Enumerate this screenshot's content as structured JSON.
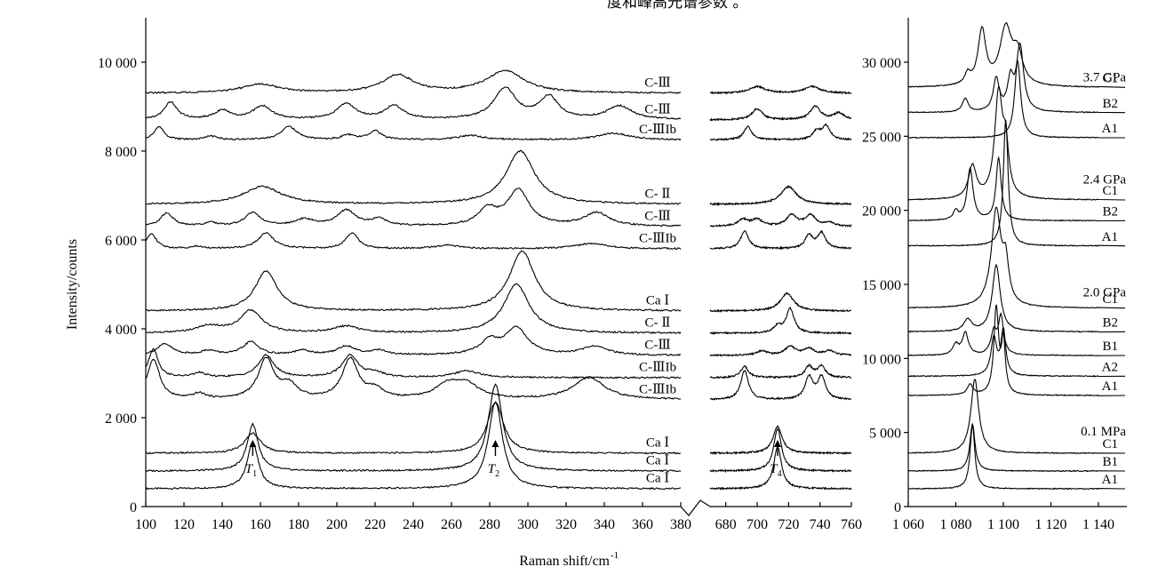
{
  "header_fragment": "度和峰高光谱参数 。",
  "chart_data": [
    {
      "type": "line",
      "panel": "main-spectra",
      "xlabel": "Raman shift/cm-1",
      "ylabel": "Intensity/counts",
      "ylim": [
        0,
        11000
      ],
      "y_ticks": [
        0,
        2000,
        4000,
        6000,
        8000,
        10000
      ],
      "y_tick_labels": [
        "0",
        "2 000",
        "4 000",
        "6 000",
        "8 000",
        "10 000"
      ],
      "x_segments": [
        {
          "xlim": [
            100,
            380
          ],
          "ticks": [
            100,
            120,
            140,
            160,
            180,
            200,
            220,
            240,
            260,
            280,
            300,
            320,
            340,
            360,
            380
          ]
        },
        {
          "xlim": [
            670,
            760
          ],
          "ticks": [
            680,
            700,
            720,
            740,
            760
          ]
        }
      ],
      "grid": false,
      "annotations": [
        {
          "label_main": "T",
          "label_sub": "1",
          "x": 156,
          "y": 980
        },
        {
          "label_main": "T",
          "label_sub": "2",
          "x": 283,
          "y": 980
        },
        {
          "label_main": "T",
          "label_sub": "4",
          "x": 713,
          "y": 980
        }
      ],
      "series": [
        {
          "name": "Ca Ⅰ",
          "baseline": 400,
          "peaks": [
            [
              156,
              1050,
              3.5
            ],
            [
              283,
              1950,
              4.5
            ],
            [
              713,
              950,
              3
            ]
          ]
        },
        {
          "name": "Ca Ⅰ",
          "baseline": 800,
          "peaks": [
            [
              156,
              1050,
              3.5
            ],
            [
              283,
              1950,
              4.5
            ],
            [
              713,
              950,
              3
            ]
          ]
        },
        {
          "name": "Ca Ⅰ",
          "baseline": 1200,
          "peaks": [
            [
              156,
              450,
              5
            ],
            [
              283,
              1150,
              5
            ],
            [
              713,
              600,
              3.5
            ]
          ]
        },
        {
          "name": "C-ⅢIb",
          "baseline": 2400,
          "peaks": [
            [
              104,
              900,
              4
            ],
            [
              128,
              120,
              4
            ],
            [
              163,
              900,
              5
            ],
            [
              175,
              300,
              5
            ],
            [
              207,
              900,
              5
            ],
            [
              220,
              200,
              5
            ],
            [
              258,
              300,
              8
            ],
            [
              268,
              300,
              8
            ],
            [
              332,
              500,
              10
            ],
            [
              692,
              650,
              3
            ],
            [
              733,
              500,
              3
            ],
            [
              741,
              500,
              3
            ]
          ]
        },
        {
          "name": "C-ⅢIb",
          "baseline": 2900,
          "peaks": [
            [
              104,
              650,
              3
            ],
            [
              128,
              100,
              4
            ],
            [
              163,
              500,
              5
            ],
            [
              207,
              500,
              5
            ],
            [
              220,
              100,
              5
            ],
            [
              268,
              150,
              8
            ],
            [
              692,
              250,
              3
            ],
            [
              733,
              250,
              3
            ],
            [
              741,
              250,
              3
            ]
          ]
        },
        {
          "name": "C-Ⅲ",
          "baseline": 3400,
          "peaks": [
            [
              110,
              250,
              5
            ],
            [
              133,
              100,
              5
            ],
            [
              155,
              300,
              5
            ],
            [
              182,
              100,
              5
            ],
            [
              205,
              200,
              6
            ],
            [
              222,
              100,
              5
            ],
            [
              280,
              300,
              6
            ],
            [
              294,
              600,
              7
            ],
            [
              335,
              200,
              8
            ],
            [
              703,
              100,
              4
            ],
            [
              721,
              200,
              4
            ],
            [
              733,
              150,
              4
            ],
            [
              746,
              100,
              4
            ]
          ]
        },
        {
          "name": "C- Ⅱ",
          "baseline": 3900,
          "peaks": [
            [
              133,
              150,
              8
            ],
            [
              155,
              500,
              7
            ],
            [
              205,
              150,
              8
            ],
            [
              294,
              1100,
              8
            ],
            [
              713,
              150,
              3
            ],
            [
              721,
              550,
              3
            ]
          ]
        },
        {
          "name": "Ca Ⅰ",
          "baseline": 4400,
          "peaks": [
            [
              163,
              900,
              7
            ],
            [
              297,
              1350,
              8
            ],
            [
              719,
              400,
              5
            ]
          ]
        },
        {
          "name": "C-ⅢIb",
          "baseline": 5800,
          "peaks": [
            [
              103,
              350,
              3
            ],
            [
              127,
              50,
              4
            ],
            [
              163,
              350,
              5
            ],
            [
              208,
              350,
              4
            ],
            [
              258,
              80,
              8
            ],
            [
              333,
              120,
              10
            ],
            [
              692,
              400,
              3
            ],
            [
              733,
              300,
              3
            ],
            [
              741,
              350,
              3
            ]
          ]
        },
        {
          "name": "C-Ⅲ",
          "baseline": 6300,
          "peaks": [
            [
              111,
              300,
              4
            ],
            [
              134,
              80,
              4
            ],
            [
              156,
              300,
              5
            ],
            [
              183,
              150,
              6
            ],
            [
              205,
              350,
              6
            ],
            [
              222,
              150,
              5
            ],
            [
              279,
              350,
              6
            ],
            [
              295,
              800,
              7
            ],
            [
              336,
              300,
              8
            ],
            [
              691,
              150,
              4
            ],
            [
              700,
              150,
              4
            ],
            [
              722,
              250,
              4
            ],
            [
              734,
              250,
              4
            ],
            [
              746,
              80,
              4
            ]
          ]
        },
        {
          "name": "C- Ⅱ",
          "baseline": 6800,
          "peaks": [
            [
              161,
              400,
              12
            ],
            [
              296,
              1200,
              9
            ],
            [
              720,
              400,
              6
            ]
          ]
        },
        {
          "name": "C-ⅢIb",
          "baseline": 8250,
          "peaks": [
            [
              107,
              300,
              3
            ],
            [
              134,
              80,
              4
            ],
            [
              175,
              300,
              5
            ],
            [
              206,
              100,
              4
            ],
            [
              220,
              200,
              4
            ],
            [
              270,
              100,
              8
            ],
            [
              345,
              150,
              10
            ],
            [
              694,
              300,
              3
            ],
            [
              738,
              200,
              3
            ],
            [
              744,
              300,
              3
            ]
          ]
        },
        {
          "name": "C-Ⅲ",
          "baseline": 8700,
          "peaks": [
            [
              113,
              400,
              4
            ],
            [
              140,
              200,
              5
            ],
            [
              161,
              300,
              6
            ],
            [
              205,
              350,
              6
            ],
            [
              230,
              300,
              6
            ],
            [
              288,
              700,
              7
            ],
            [
              311,
              500,
              6
            ],
            [
              348,
              300,
              8
            ],
            [
              700,
              250,
              4
            ],
            [
              737,
              300,
              4
            ],
            [
              752,
              150,
              4
            ]
          ]
        },
        {
          "name": "C-Ⅲ",
          "baseline": 9300,
          "peaks": [
            [
              160,
              200,
              12
            ],
            [
              232,
              400,
              10
            ],
            [
              288,
              500,
              12
            ],
            [
              700,
              150,
              6
            ],
            [
              735,
              150,
              6
            ]
          ]
        }
      ]
    },
    {
      "type": "line",
      "panel": "pressure-spectra",
      "xlabel": "",
      "ylim": [
        0,
        33000
      ],
      "y_ticks": [
        0,
        5000,
        10000,
        15000,
        20000,
        25000,
        30000
      ],
      "y_tick_labels": [
        "0",
        "5 000",
        "10 000",
        "15 000",
        "20 000",
        "25 000",
        "30 000"
      ],
      "x_tick_labels": [
        "1 060",
        "1 080",
        "1 100",
        "1 120",
        "1 140"
      ],
      "xlim": [
        1060,
        1140
      ],
      "grid": false,
      "pressure_labels": [
        {
          "text": "0.1 MPa",
          "y": 5100
        },
        {
          "text": "2.0 GPa",
          "y": 14500
        },
        {
          "text": "2.4 GPa",
          "y": 22100
        },
        {
          "text": "3.7 GPa",
          "y": 29000
        }
      ],
      "series": [
        {
          "name": "A1",
          "baseline": 1200,
          "peaks": [
            [
              1087,
              4300,
              1.2
            ]
          ]
        },
        {
          "name": "B1",
          "baseline": 2400,
          "peaks": [
            [
              1087,
              3200,
              1.3
            ]
          ]
        },
        {
          "name": "C1",
          "baseline": 3600,
          "peaks": [
            [
              1088,
              5000,
              2.0
            ]
          ]
        },
        {
          "name": "A1",
          "baseline": 7500,
          "peaks": [
            [
              1097,
              5800,
              1.2
            ],
            [
              1100,
              3500,
              1.0
            ],
            [
              1086,
              700,
              1.5
            ]
          ]
        },
        {
          "name": "A2",
          "baseline": 8800,
          "peaks": [
            [
              1096,
              2500,
              1.5
            ],
            [
              1100,
              3000,
              1.2
            ]
          ]
        },
        {
          "name": "B1",
          "baseline": 10200,
          "peaks": [
            [
              1080,
              700,
              1.5
            ],
            [
              1084,
              1500,
              1.5
            ],
            [
              1096,
              1500,
              1.5
            ],
            [
              1099,
              2500,
              1.3
            ]
          ]
        },
        {
          "name": "B2",
          "baseline": 11800,
          "peaks": [
            [
              1085,
              800,
              2.0
            ],
            [
              1097,
              4500,
              2.0
            ]
          ]
        },
        {
          "name": "C1",
          "baseline": 13400,
          "peaks": [
            [
              1097,
              6500,
              2.5
            ],
            [
              1101,
              2500,
              1.5
            ]
          ]
        },
        {
          "name": "A1",
          "baseline": 17600,
          "peaks": [
            [
              1101,
              8500,
              1.2
            ]
          ]
        },
        {
          "name": "B2",
          "baseline": 19300,
          "peaks": [
            [
              1086,
              3500,
              1.5
            ],
            [
              1080,
              600,
              1.2
            ],
            [
              1098,
              4200,
              1.3
            ]
          ]
        },
        {
          "name": "C1",
          "baseline": 20700,
          "peaks": [
            [
              1087,
              2200,
              2.0
            ],
            [
              1098,
              7000,
              2.0
            ],
            [
              1101,
              3000,
              1.5
            ]
          ]
        },
        {
          "name": "A1",
          "baseline": 24900,
          "peaks": [
            [
              1106,
              5200,
              1.5
            ]
          ]
        },
        {
          "name": "B2",
          "baseline": 26600,
          "peaks": [
            [
              1084,
              900,
              1.5
            ],
            [
              1097,
              2200,
              1.5
            ],
            [
              1103,
              2000,
              1.5
            ],
            [
              1107,
              4400,
              1.8
            ]
          ]
        },
        {
          "name": "C1",
          "baseline": 28300,
          "peaks": [
            [
              1085,
              700,
              1.5
            ],
            [
              1091,
              3700,
              2.0
            ],
            [
              1101,
              3800,
              3.0
            ],
            [
              1106,
              2000,
              2.5
            ]
          ]
        }
      ]
    }
  ]
}
